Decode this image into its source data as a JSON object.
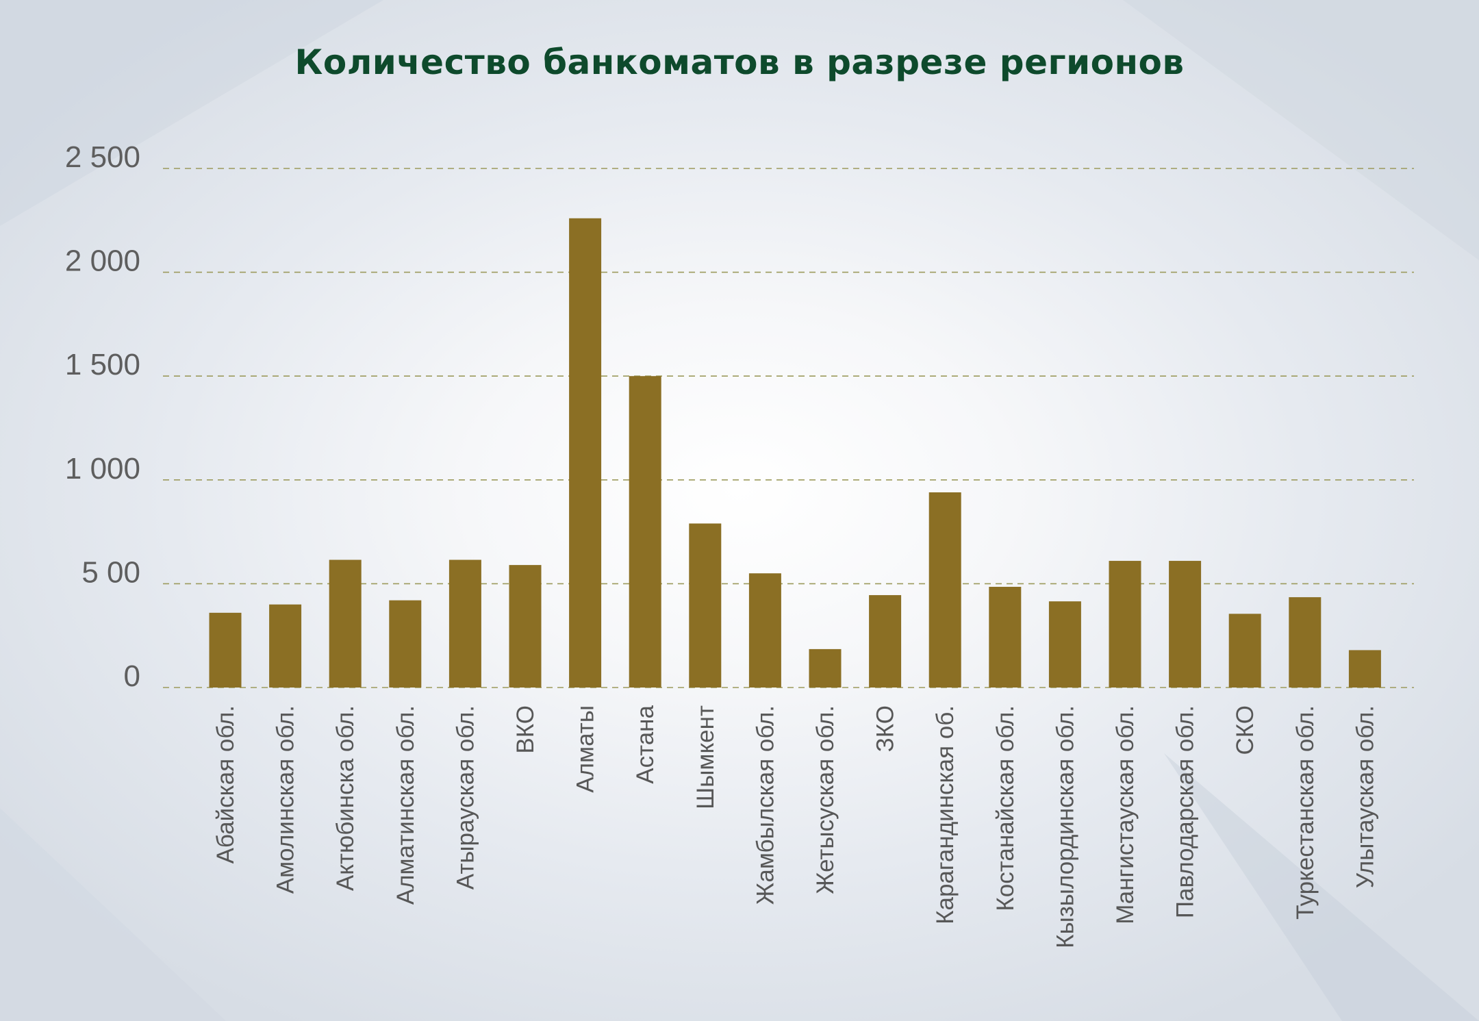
{
  "chart_data": {
    "type": "bar",
    "title": "Количество банкоматов в разрезе регионов",
    "xlabel": "",
    "ylabel": "",
    "ylim": [
      0,
      2500
    ],
    "yticks": [
      0,
      500,
      1000,
      1500,
      2000,
      2500
    ],
    "ytick_labels": [
      "0",
      "5 00",
      "1 000",
      "1 500",
      "2 000",
      "2 500"
    ],
    "grid": true,
    "legend": "none",
    "categories": [
      "Абайская обл.",
      "Амолинская обл.",
      "Актюбинска обл.",
      "Алматинская обл.",
      "Атырауская обл.",
      "ВКО",
      "Алматы",
      "Астана",
      "Шымкент",
      "Жамбылская обл.",
      "Жетысуская обл.",
      "ЗКО",
      "Карагандинская об.",
      "Костанайская обл.",
      "Кызылординская обл.",
      "Мангистауская обл.",
      "Павлодарская обл.",
      "СКО",
      "Туркестанская обл.",
      "Улытауская обл."
    ],
    "values": [
      360,
      400,
      615,
      420,
      615,
      590,
      2260,
      1500,
      790,
      550,
      185,
      445,
      940,
      485,
      415,
      610,
      610,
      355,
      435,
      180
    ]
  },
  "colors": {
    "bar": "#8b6f24",
    "grid": "#9c9a5c",
    "title": "#0e4a2c",
    "tick_text": "#5e5e5e"
  }
}
